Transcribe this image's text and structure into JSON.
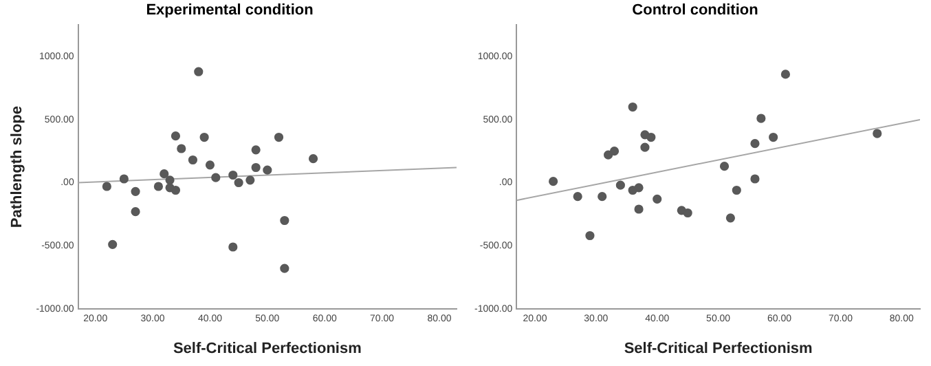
{
  "chart_data": [
    {
      "type": "scatter",
      "title": "Experimental condition",
      "xlabel": "Self-Critical Perfectionism",
      "ylabel": "Pathlength slope",
      "xlim": [
        17,
        83
      ],
      "ylim": [
        -1000,
        1250
      ],
      "xticks": [
        {
          "value": 20,
          "label": "20.00"
        },
        {
          "value": 30,
          "label": "30.00"
        },
        {
          "value": 40,
          "label": "40.00"
        },
        {
          "value": 50,
          "label": "50.00"
        },
        {
          "value": 60,
          "label": "60.00"
        },
        {
          "value": 70,
          "label": "70.00"
        },
        {
          "value": 80,
          "label": "80.00"
        }
      ],
      "yticks": [
        {
          "value": -1000,
          "label": "-1000.00"
        },
        {
          "value": -500,
          "label": "-500.00"
        },
        {
          "value": 0,
          "label": ".00"
        },
        {
          "value": 500,
          "label": "500.00"
        },
        {
          "value": 1000,
          "label": "1000.00"
        }
      ],
      "grid": false,
      "legend": false,
      "marker": "circle",
      "series": [
        {
          "color": "#595959",
          "x": [
            22,
            23,
            25,
            27,
            27,
            31,
            32,
            33,
            33,
            34,
            34,
            35,
            37,
            38,
            39,
            40,
            41,
            44,
            44,
            45,
            47,
            48,
            48,
            50,
            52,
            53,
            53,
            58
          ],
          "values": [
            -30,
            -490,
            30,
            -70,
            -230,
            -30,
            70,
            20,
            -40,
            -60,
            370,
            270,
            180,
            880,
            360,
            140,
            40,
            60,
            -510,
            0,
            20,
            260,
            120,
            100,
            360,
            -300,
            -680,
            190
          ]
        },
        {
          "type": "line",
          "color": "#a6a6a6",
          "marker": "none",
          "x": [
            17,
            83
          ],
          "values": [
            0,
            120
          ]
        }
      ]
    },
    {
      "type": "scatter",
      "title": "Control condition",
      "xlabel": "Self-Critical Perfectionism",
      "xlim": [
        17,
        83
      ],
      "ylim": [
        -1000,
        1250
      ],
      "xticks": [
        {
          "value": 20,
          "label": "20.00"
        },
        {
          "value": 30,
          "label": "30.00"
        },
        {
          "value": 40,
          "label": "40.00"
        },
        {
          "value": 50,
          "label": "50.00"
        },
        {
          "value": 60,
          "label": "60.00"
        },
        {
          "value": 70,
          "label": "70.00"
        },
        {
          "value": 80,
          "label": "80.00"
        }
      ],
      "yticks": [
        {
          "value": -1000,
          "label": "-1000.00"
        },
        {
          "value": -500,
          "label": "-500.00"
        },
        {
          "value": 0,
          "label": ".00"
        },
        {
          "value": 500,
          "label": "500.00"
        },
        {
          "value": 1000,
          "label": "1000.00"
        }
      ],
      "grid": false,
      "legend": false,
      "marker": "circle",
      "series": [
        {
          "color": "#595959",
          "x": [
            23,
            27,
            29,
            31,
            32,
            33,
            34,
            36,
            36,
            37,
            37,
            38,
            38,
            39,
            40,
            44,
            45,
            51,
            52,
            53,
            56,
            56,
            57,
            59,
            61,
            76
          ],
          "values": [
            10,
            -110,
            -420,
            -110,
            220,
            250,
            -20,
            600,
            -60,
            -40,
            -210,
            380,
            280,
            360,
            -130,
            -220,
            -240,
            130,
            -280,
            -60,
            310,
            30,
            510,
            360,
            860,
            390
          ]
        },
        {
          "type": "line",
          "color": "#a6a6a6",
          "marker": "none",
          "x": [
            17,
            83
          ],
          "values": [
            -140,
            500
          ]
        }
      ]
    }
  ]
}
